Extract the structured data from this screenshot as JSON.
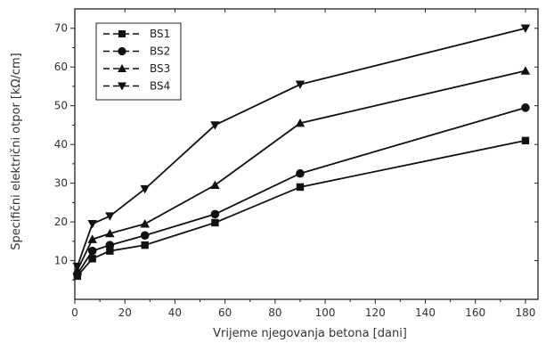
{
  "chart_data": {
    "type": "line",
    "xlabel": "Vrijeme njegovanja betona [dani]",
    "ylabel": "Specifični električni otpor [kΩ/cm]",
    "xlim": [
      0,
      185
    ],
    "ylim": [
      0,
      75
    ],
    "xticks": [
      0,
      20,
      40,
      60,
      80,
      100,
      120,
      140,
      160,
      180
    ],
    "yticks": [
      10,
      20,
      30,
      40,
      50,
      60,
      70
    ],
    "grid": false,
    "legend_position": "top-left",
    "x": [
      1,
      7,
      14,
      28,
      56,
      90,
      180
    ],
    "series": [
      {
        "name": "BS1",
        "marker": "square",
        "values": [
          6,
          10.5,
          12.5,
          14,
          19.8,
          29,
          41
        ]
      },
      {
        "name": "BS2",
        "marker": "circle",
        "values": [
          6.5,
          12.5,
          14,
          16.5,
          22,
          32.5,
          49.5
        ]
      },
      {
        "name": "BS3",
        "marker": "triangle-up",
        "values": [
          7.5,
          15.5,
          17,
          19.5,
          29.5,
          45.5,
          59
        ]
      },
      {
        "name": "BS4",
        "marker": "triangle-down",
        "values": [
          8.5,
          19.5,
          21.5,
          28.5,
          45,
          55.5,
          70
        ]
      }
    ]
  }
}
